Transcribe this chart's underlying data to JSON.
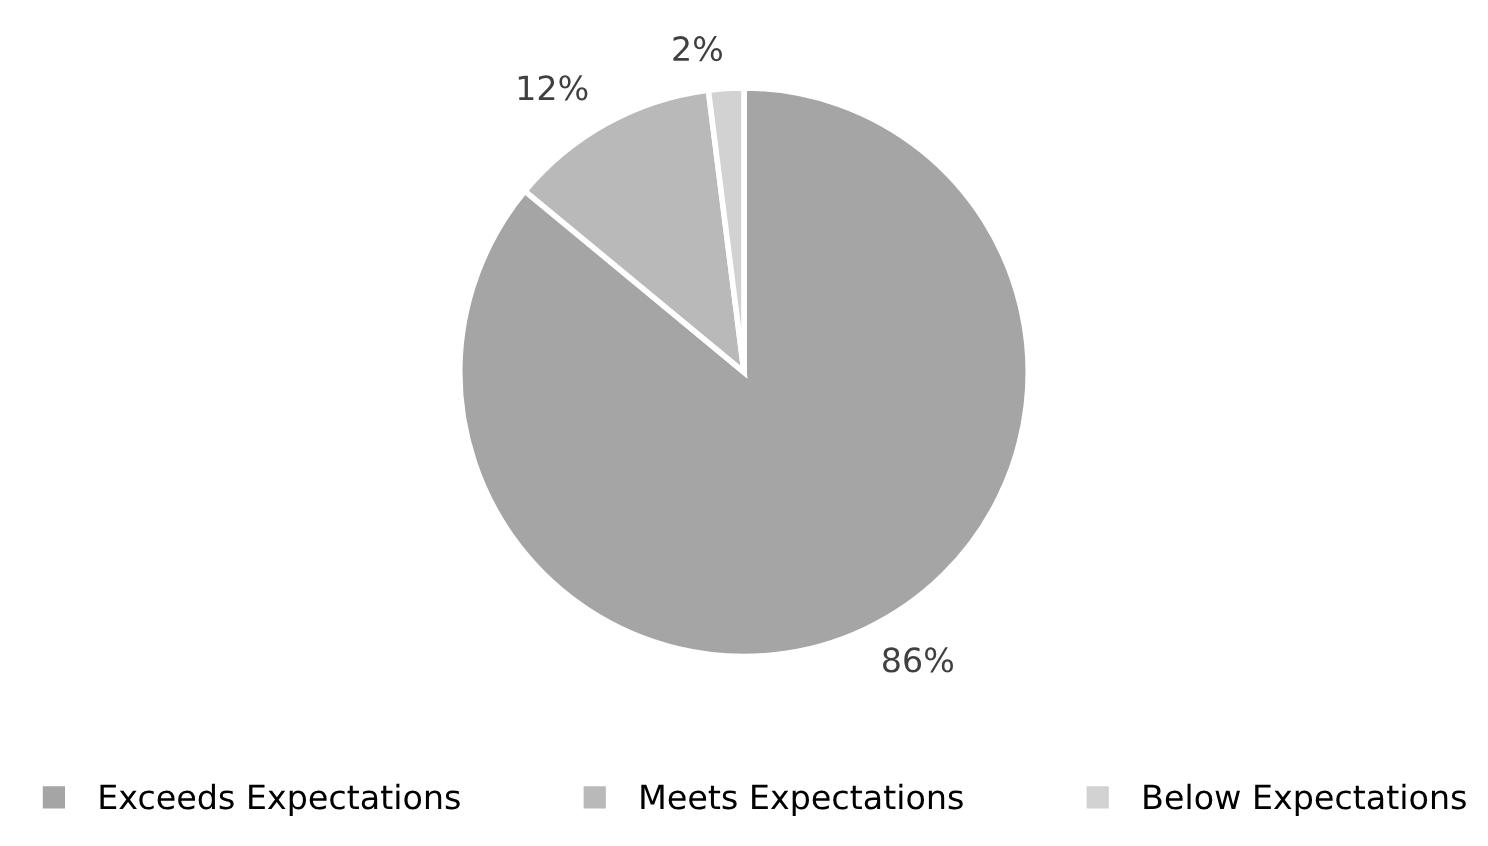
{
  "chart_data": {
    "type": "pie",
    "categories": [
      "Exceeds Expectations",
      "Meets Expectations",
      "Below Expectations"
    ],
    "values": [
      86,
      12,
      2
    ],
    "value_labels": [
      "86%",
      "12%",
      "2%"
    ],
    "colors": [
      "#a5a5a5",
      "#b9b9b9",
      "#d2d2d2"
    ],
    "legend": "bottom"
  }
}
